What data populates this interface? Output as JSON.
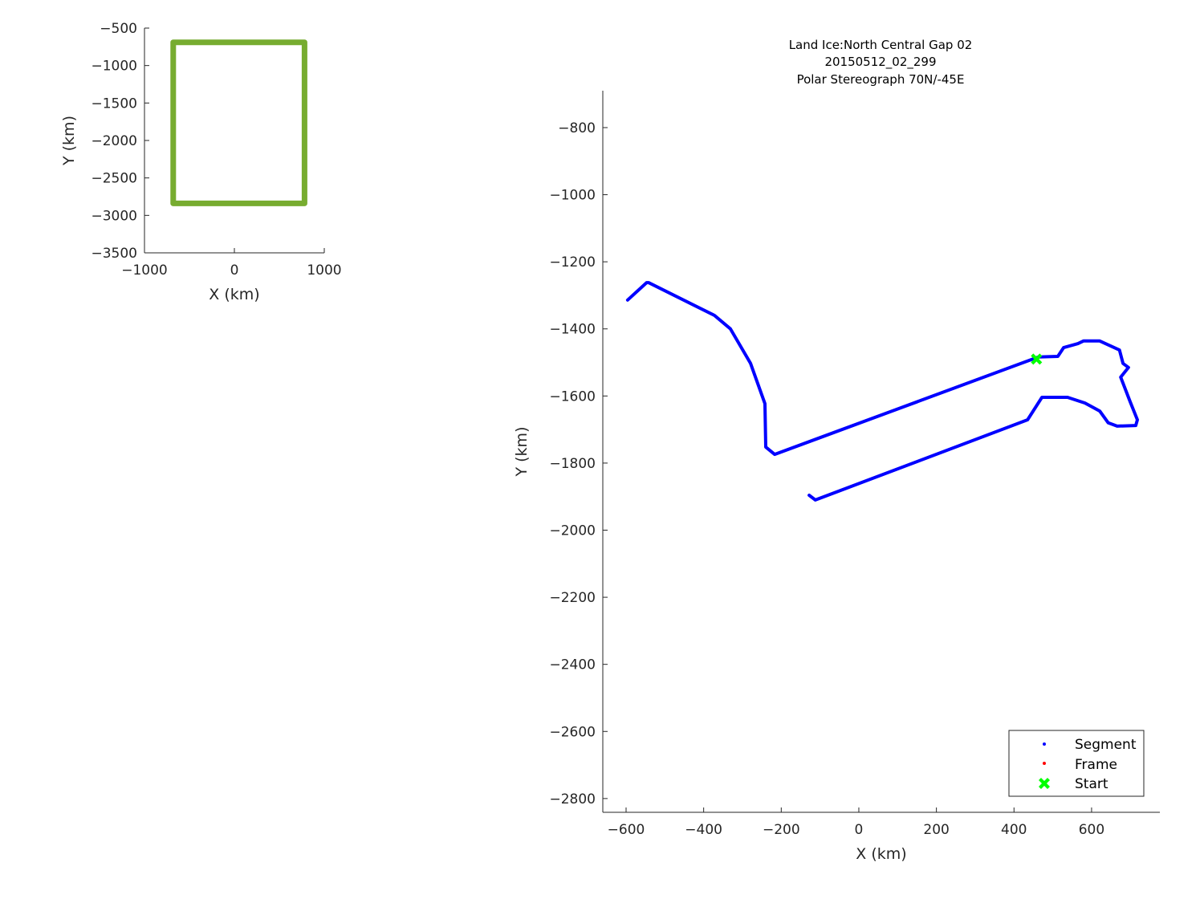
{
  "chart_data": [
    {
      "type": "line",
      "panel": "overview",
      "xlabel": "X (km)",
      "ylabel": "Y (km)",
      "xlim": [
        -1000,
        1000
      ],
      "ylim": [
        -3500,
        -500
      ],
      "xticks": [
        -1000,
        0,
        1000
      ],
      "yticks": [
        -500,
        -1000,
        -1500,
        -2000,
        -2500,
        -3000,
        -3500
      ],
      "grid": false,
      "series": [
        {
          "color": "#77ac30",
          "x": [
            -680,
            780,
            780,
            -680,
            -680
          ],
          "y": [
            -690,
            -690,
            -2840,
            -2840,
            -690
          ]
        }
      ]
    },
    {
      "type": "line",
      "panel": "main",
      "title": [
        "Land Ice:North Central Gap 02",
        "20150512_02_299",
        "Polar Stereograph 70N/-45E"
      ],
      "xlabel": "X (km)",
      "ylabel": "Y (km)",
      "xlim": [
        -660,
        776
      ],
      "ylim": [
        -2841,
        -690
      ],
      "xticks": [
        -600,
        -400,
        -200,
        0,
        200,
        400,
        600
      ],
      "yticks": [
        -800,
        -1000,
        -1200,
        -1400,
        -1600,
        -1800,
        -2000,
        -2200,
        -2400,
        -2600,
        -2800
      ],
      "grid": false,
      "legend_position": "bottom-right",
      "series": [
        {
          "name": "Segment",
          "color": "#0000ff",
          "marker": "dot",
          "x": [
            -596,
            -547,
            -542,
            -372,
            -331,
            -279,
            -242,
            -240,
            -217,
            463,
            513,
            528,
            565,
            579,
            621,
            672,
            681,
            695,
            675,
            699,
            718,
            714,
            666,
            643,
            621,
            583,
            538,
            472,
            435,
            -112,
            -128
          ],
          "y": [
            -1314,
            -1262,
            -1262,
            -1360,
            -1400,
            -1503,
            -1623,
            -1752,
            -1774,
            -1484,
            -1482,
            -1456,
            -1444,
            -1436,
            -1436,
            -1463,
            -1503,
            -1515,
            -1544,
            -1616,
            -1671,
            -1688,
            -1690,
            -1680,
            -1645,
            -1621,
            -1604,
            -1604,
            -1671,
            -1910,
            -1896
          ]
        },
        {
          "name": "Frame",
          "color": "#ff0000",
          "marker": "dot",
          "x": [],
          "y": []
        },
        {
          "name": "Start",
          "color": "#00ff00",
          "marker": "x-filled",
          "x": [
            458
          ],
          "y": [
            -1490
          ]
        }
      ]
    }
  ]
}
